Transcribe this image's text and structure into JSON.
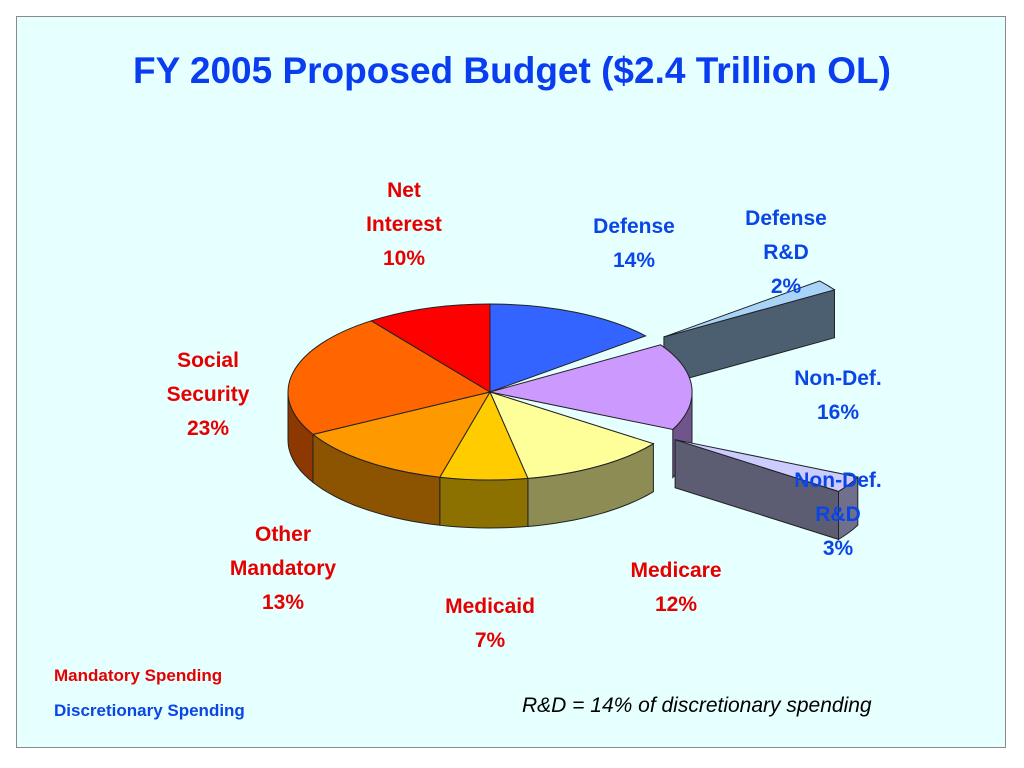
{
  "colors": {
    "title": "#0a3cf0",
    "mandatory": "#e60000",
    "discretionary": "#0a46e6"
  },
  "legend": {
    "mandatory": "Mandatory Spending",
    "discretionary": "Discretionary Spending"
  },
  "note": "R&D = 14% of discretionary spending",
  "chart_data": {
    "type": "pie",
    "title": "FY 2005 Proposed Budget ($2.4 Trillion OL)",
    "three_d": true,
    "slices": [
      {
        "key": "defense",
        "lines": [
          "Defense",
          "14%"
        ],
        "value": 14,
        "group": "discretionary",
        "color": "#3464ff",
        "exploded": false
      },
      {
        "key": "defense_rd",
        "lines": [
          "Defense",
          "R&D",
          "2%"
        ],
        "value": 2,
        "group": "discretionary",
        "color": "#a8d4f8",
        "exploded": true
      },
      {
        "key": "nondef",
        "lines": [
          "Non-Def.",
          "16%"
        ],
        "value": 16,
        "group": "discretionary",
        "color": "#cc99ff",
        "exploded": false
      },
      {
        "key": "nondef_rd",
        "lines": [
          "Non-Def.",
          "R&D",
          "3%"
        ],
        "value": 3,
        "group": "discretionary",
        "color": "#ccccff",
        "exploded": true
      },
      {
        "key": "medicare",
        "lines": [
          "Medicare",
          "12%"
        ],
        "value": 12,
        "group": "mandatory",
        "color": "#ffff99",
        "exploded": false
      },
      {
        "key": "medicaid",
        "lines": [
          "Medicaid",
          "7%"
        ],
        "value": 7,
        "group": "mandatory",
        "color": "#ffcc00",
        "exploded": false
      },
      {
        "key": "other_mandatory",
        "lines": [
          "Other",
          "Mandatory",
          "13%"
        ],
        "value": 13,
        "group": "mandatory",
        "color": "#ff9900",
        "exploded": false
      },
      {
        "key": "social_security",
        "lines": [
          "Social",
          "Security",
          "23%"
        ],
        "value": 23,
        "group": "mandatory",
        "color": "#ff6600",
        "exploded": false
      },
      {
        "key": "net_interest",
        "lines": [
          "Net",
          "Interest",
          "10%"
        ],
        "value": 10,
        "group": "mandatory",
        "color": "#ff0000",
        "exploded": false
      }
    ]
  }
}
